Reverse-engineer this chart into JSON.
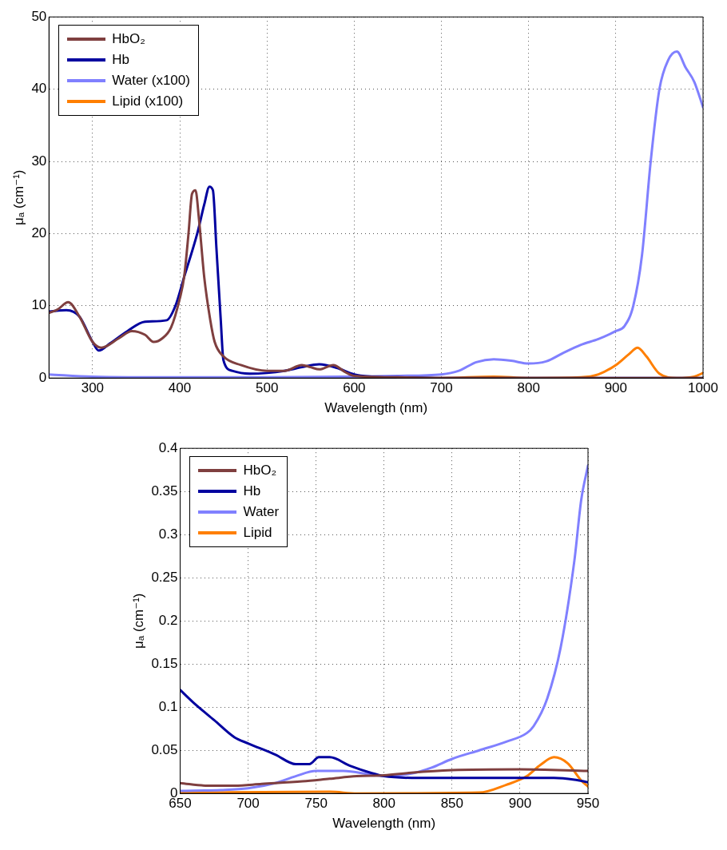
{
  "chart_data": [
    {
      "type": "line",
      "xlabel": "Wavelength (nm)",
      "ylabel": "μₐ (cm⁻¹)",
      "xlim": [
        250,
        1000
      ],
      "xticks": [
        300,
        400,
        500,
        600,
        700,
        800,
        900,
        1000
      ],
      "ylim": [
        0,
        50
      ],
      "yticks": [
        0,
        10,
        20,
        30,
        40,
        50
      ],
      "grid": true,
      "legend": "top left",
      "marker": "none",
      "line_style": "solid",
      "series": [
        {
          "name": "HbO₂",
          "color": "#7f3f3f",
          "x": [
            250,
            260,
            272,
            285,
            300,
            310,
            330,
            345,
            360,
            370,
            380,
            390,
            400,
            405,
            410,
            414,
            418,
            422,
            428,
            435,
            440,
            450,
            470,
            500,
            520,
            540,
            550,
            560,
            576,
            590,
            600,
            650,
            700,
            800,
            1000
          ],
          "values": [
            9,
            9.5,
            10.5,
            8.5,
            5,
            4.2,
            5.5,
            6.5,
            6,
            5,
            5.5,
            7,
            11,
            14,
            20,
            25.5,
            26,
            22,
            14,
            8,
            5,
            3,
            1.8,
            1,
            1,
            1.8,
            1.5,
            1.2,
            1.8,
            0.8,
            0.3,
            0.1,
            0,
            0,
            0
          ]
        },
        {
          "name": "Hb",
          "color": "#00009f",
          "x": [
            250,
            270,
            285,
            300,
            307,
            320,
            340,
            360,
            385,
            395,
            405,
            420,
            428,
            434,
            438,
            442,
            447,
            450,
            460,
            480,
            500,
            520,
            540,
            560,
            580,
            600,
            620,
            650,
            700,
            1000
          ],
          "values": [
            9.2,
            9.4,
            8.5,
            5,
            3.8,
            4.8,
            6.5,
            7.8,
            8,
            10,
            14,
            20,
            24,
            26.5,
            26,
            18,
            8,
            2.5,
            1,
            0.6,
            0.7,
            1,
            1.5,
            1.9,
            1.4,
            0.5,
            0.2,
            0.1,
            0,
            0
          ]
        },
        {
          "name": "Water (x100)",
          "color": "#8080ff",
          "x": [
            250,
            300,
            400,
            500,
            600,
            650,
            700,
            720,
            740,
            760,
            780,
            800,
            820,
            840,
            860,
            880,
            900,
            910,
            920,
            930,
            940,
            950,
            960,
            970,
            980,
            990,
            1000
          ],
          "values": [
            0.5,
            0.2,
            0.1,
            0.1,
            0.2,
            0.3,
            0.5,
            1,
            2.2,
            2.6,
            2.4,
            2,
            2.3,
            3.5,
            4.6,
            5.4,
            6.5,
            7.2,
            10,
            17,
            30,
            40,
            44,
            45.2,
            43,
            41,
            37.5
          ]
        },
        {
          "name": "Lipid (x100)",
          "color": "#ff7f00",
          "x": [
            650,
            700,
            760,
            800,
            860,
            880,
            900,
            915,
            925,
            935,
            950,
            970,
            990,
            1000
          ],
          "values": [
            0,
            0,
            0.2,
            0,
            0.1,
            0.5,
            1.8,
            3.3,
            4.2,
            3,
            0.6,
            0,
            0.2,
            0.7
          ]
        }
      ]
    },
    {
      "type": "line",
      "xlabel": "Wavelength (nm)",
      "ylabel": "μₐ (cm⁻¹)",
      "xlim": [
        650,
        950
      ],
      "xticks": [
        650,
        700,
        750,
        800,
        850,
        900,
        950
      ],
      "ylim": [
        0,
        0.4
      ],
      "yticks": [
        0,
        0.05,
        0.1,
        0.15,
        0.2,
        0.25,
        0.3,
        0.35,
        0.4
      ],
      "grid": true,
      "legend": "top left",
      "marker": "none",
      "line_style": "solid",
      "series": [
        {
          "name": "HbO₂",
          "color": "#7f3f3f",
          "x": [
            650,
            670,
            690,
            710,
            740,
            760,
            780,
            800,
            820,
            850,
            900,
            950
          ],
          "values": [
            0.012,
            0.009,
            0.009,
            0.011,
            0.014,
            0.017,
            0.02,
            0.021,
            0.024,
            0.027,
            0.028,
            0.026
          ]
        },
        {
          "name": "Hb",
          "color": "#00009f",
          "x": [
            650,
            660,
            675,
            690,
            700,
            720,
            735,
            745,
            752,
            760,
            775,
            790,
            800,
            825,
            850,
            900,
            925,
            940,
            950
          ],
          "values": [
            0.12,
            0.105,
            0.085,
            0.065,
            0.058,
            0.045,
            0.034,
            0.034,
            0.042,
            0.042,
            0.032,
            0.024,
            0.02,
            0.018,
            0.018,
            0.018,
            0.018,
            0.016,
            0.013
          ]
        },
        {
          "name": "Water",
          "color": "#8080ff",
          "x": [
            650,
            680,
            700,
            720,
            735,
            750,
            770,
            790,
            800,
            820,
            835,
            850,
            870,
            890,
            905,
            910,
            920,
            930,
            940,
            945,
            950
          ],
          "values": [
            0.003,
            0.004,
            0.006,
            0.012,
            0.02,
            0.026,
            0.026,
            0.022,
            0.02,
            0.023,
            0.03,
            0.04,
            0.05,
            0.06,
            0.07,
            0.078,
            0.11,
            0.17,
            0.27,
            0.34,
            0.38
          ]
        },
        {
          "name": "Lipid",
          "color": "#ff7f00",
          "x": [
            650,
            760,
            780,
            870,
            890,
            905,
            915,
            925,
            935,
            945,
            950
          ],
          "values": [
            0.001,
            0.002,
            0,
            0.001,
            0.01,
            0.02,
            0.033,
            0.042,
            0.035,
            0.015,
            0.008
          ]
        }
      ]
    }
  ]
}
